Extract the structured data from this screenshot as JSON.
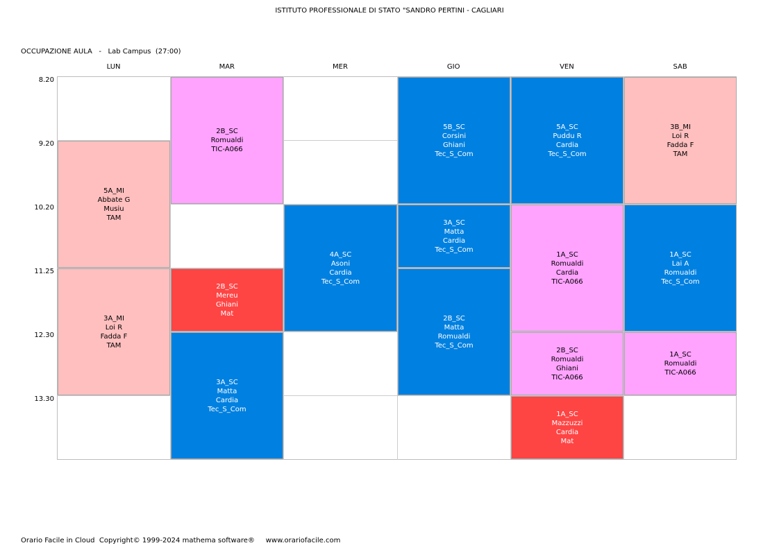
{
  "header": {
    "title": "ISTITUTO PROFESSIONALE DI STATO \"SANDRO PERTINI - CAGLIARI",
    "subtitle": "OCCUPAZIONE AULA   -   Lab Campus  (27:00)"
  },
  "days": [
    "LUN",
    "MAR",
    "MER",
    "GIO",
    "VEN",
    "SAB"
  ],
  "times": [
    "8.20",
    "9.20",
    "10.20",
    "11.25",
    "12.30",
    "13.30"
  ],
  "colors": {
    "pink": "#ffa3ff",
    "salmon": "#ffbfbf",
    "blue": "#0080e0",
    "red": "#ff4444"
  },
  "lessons": [
    {
      "day": 0,
      "start": 1,
      "span": 2,
      "color": "salmon",
      "lines": [
        "5A_MI",
        "Abbate G",
        "Musiu",
        "TAM"
      ]
    },
    {
      "day": 0,
      "start": 3,
      "span": 2,
      "color": "salmon",
      "lines": [
        "3A_MI",
        "Loi R",
        "Fadda F",
        "TAM"
      ]
    },
    {
      "day": 1,
      "start": 0,
      "span": 2,
      "color": "pink",
      "lines": [
        "2B_SC",
        "Romualdi",
        "TIC-A066"
      ]
    },
    {
      "day": 1,
      "start": 3,
      "span": 1,
      "color": "red",
      "lines": [
        "2B_SC",
        "Mereu",
        "Ghiani",
        "Mat"
      ]
    },
    {
      "day": 1,
      "start": 4,
      "span": 2,
      "color": "blue",
      "lines": [
        "3A_SC",
        "Matta",
        "Cardia",
        "Tec_S_Com"
      ]
    },
    {
      "day": 2,
      "start": 2,
      "span": 2,
      "color": "blue",
      "lines": [
        "4A_SC",
        "Asoni",
        "Cardia",
        "Tec_S_Com"
      ]
    },
    {
      "day": 3,
      "start": 0,
      "span": 2,
      "color": "blue",
      "lines": [
        "5B_SC",
        "Corsini",
        "Ghiani",
        "Tec_S_Com"
      ]
    },
    {
      "day": 3,
      "start": 2,
      "span": 1,
      "color": "blue",
      "lines": [
        "3A_SC",
        "Matta",
        "Cardia",
        "Tec_S_Com"
      ]
    },
    {
      "day": 3,
      "start": 3,
      "span": 2,
      "color": "blue",
      "lines": [
        "2B_SC",
        "Matta",
        "Romualdi",
        "Tec_S_Com"
      ]
    },
    {
      "day": 4,
      "start": 0,
      "span": 2,
      "color": "blue",
      "lines": [
        "5A_SC",
        "Puddu R",
        "Cardia",
        "Tec_S_Com"
      ]
    },
    {
      "day": 4,
      "start": 2,
      "span": 2,
      "color": "pink",
      "lines": [
        "1A_SC",
        "Romualdi",
        "Cardia",
        "TIC-A066"
      ]
    },
    {
      "day": 4,
      "start": 4,
      "span": 1,
      "color": "pink",
      "lines": [
        "2B_SC",
        "Romualdi",
        "Ghiani",
        "TIC-A066"
      ]
    },
    {
      "day": 4,
      "start": 5,
      "span": 1,
      "color": "red",
      "lines": [
        "1A_SC",
        "Mazzuzzi",
        "Cardia",
        "Mat"
      ]
    },
    {
      "day": 5,
      "start": 0,
      "span": 2,
      "color": "salmon",
      "lines": [
        "3B_MI",
        "Loi R",
        "Fadda F",
        "TAM"
      ]
    },
    {
      "day": 5,
      "start": 2,
      "span": 2,
      "color": "blue",
      "lines": [
        "1A_SC",
        "Lai A",
        "Romualdi",
        "Tec_S_Com"
      ]
    },
    {
      "day": 5,
      "start": 4,
      "span": 1,
      "color": "pink",
      "lines": [
        "1A_SC",
        "Romualdi",
        "TIC-A066"
      ]
    }
  ],
  "footer": {
    "text": "Orario Facile in Cloud  Copyright© 1999-2024 mathema software®     www.orariofacile.com"
  }
}
